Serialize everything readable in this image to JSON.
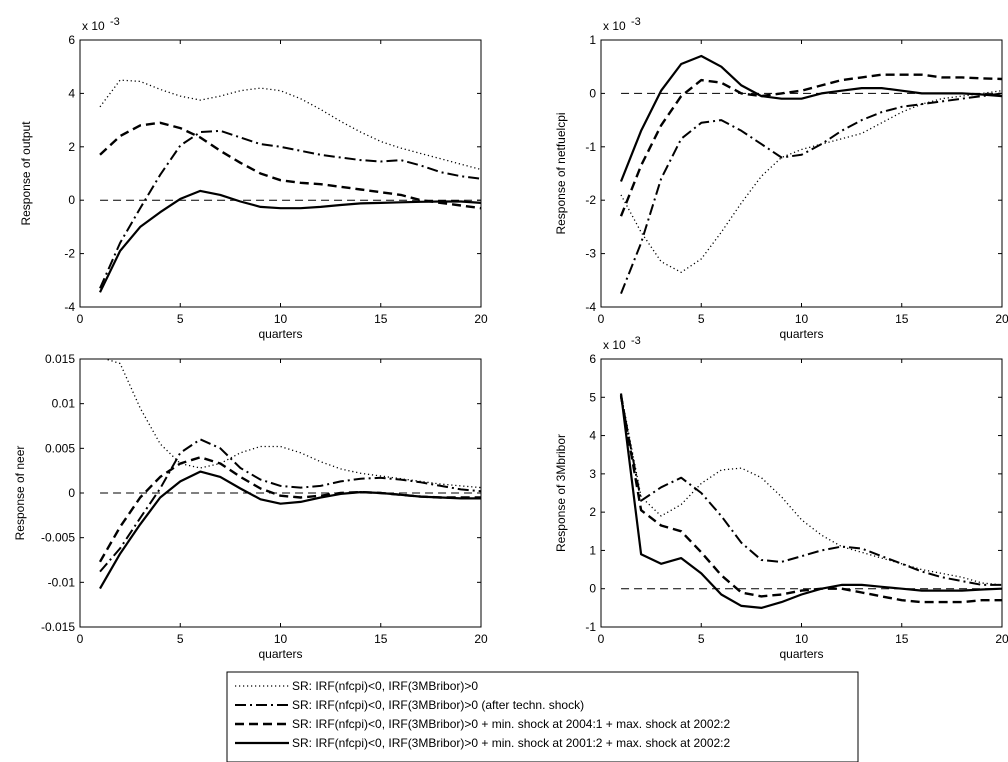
{
  "figure": {
    "xlabel": "quarters"
  },
  "legend": {
    "entries": [
      {
        "series": "sr_base",
        "label": "SR: IRF(nfcpi)<0, IRF(3MBribor)>0"
      },
      {
        "series": "sr_techn",
        "label": "SR: IRF(nfcpi)<0, IRF(3MBribor)>0 (after techn. shock)"
      },
      {
        "series": "sr_2004",
        "label": "SR: IRF(nfcpi)<0, IRF(3MBribor)>0 + min. shock at 2004:1 + max. shock at 2002:2"
      },
      {
        "series": "sr_2001",
        "label": "SR: IRF(nfcpi)<0, IRF(3MBribor)>0 + min. shock at 2001:2 + max. shock at 2002:2"
      }
    ]
  },
  "styles": {
    "sr_base": {
      "dash": "1.2 2.8",
      "width": 1.3
    },
    "sr_techn": {
      "dash": "11 4 2 4",
      "width": 2.0
    },
    "sr_2004": {
      "dash": "9 5",
      "width": 2.4
    },
    "sr_2001": {
      "dash": "",
      "width": 2.2
    },
    "zero": {
      "dash": "8 5",
      "width": 1.0
    }
  },
  "chart_data": [
    {
      "type": "line",
      "id": "output",
      "ylabel": "Response of output",
      "exponent_label": "x 10",
      "exponent_power": "-3",
      "xlim": [
        0,
        20
      ],
      "ylim": [
        -4,
        6
      ],
      "xticks": [
        0,
        5,
        10,
        15,
        20
      ],
      "yticks": [
        -4,
        -2,
        0,
        2,
        4,
        6
      ],
      "ytick_labels": [
        "-4",
        "-2",
        "0",
        "2",
        "4",
        "6"
      ],
      "reference_line": 0,
      "series": [
        {
          "key": "sr_base",
          "x": [
            1,
            2,
            3,
            4,
            5,
            6,
            7,
            8,
            9,
            10,
            11,
            12,
            13,
            14,
            15,
            16,
            17,
            18,
            19,
            20
          ],
          "y": [
            3.5,
            4.5,
            4.45,
            4.15,
            3.9,
            3.75,
            3.9,
            4.1,
            4.2,
            4.1,
            3.8,
            3.4,
            2.95,
            2.55,
            2.2,
            1.95,
            1.75,
            1.55,
            1.35,
            1.15
          ]
        },
        {
          "key": "sr_techn",
          "x": [
            1,
            2,
            3,
            4,
            5,
            6,
            7,
            8,
            9,
            10,
            11,
            12,
            13,
            14,
            15,
            16,
            17,
            18,
            19,
            20
          ],
          "y": [
            -3.3,
            -1.6,
            -0.3,
            0.95,
            2.05,
            2.55,
            2.6,
            2.35,
            2.1,
            2.0,
            1.85,
            1.7,
            1.6,
            1.5,
            1.45,
            1.5,
            1.3,
            1.05,
            0.9,
            0.8
          ]
        },
        {
          "key": "sr_2004",
          "x": [
            1,
            2,
            3,
            4,
            5,
            6,
            7,
            8,
            9,
            10,
            11,
            12,
            13,
            14,
            15,
            16,
            17,
            18,
            19,
            20
          ],
          "y": [
            1.7,
            2.4,
            2.8,
            2.9,
            2.7,
            2.35,
            1.85,
            1.4,
            1.0,
            0.75,
            0.65,
            0.6,
            0.5,
            0.4,
            0.3,
            0.2,
            0.0,
            -0.1,
            -0.2,
            -0.3
          ]
        },
        {
          "key": "sr_2001",
          "x": [
            1,
            2,
            3,
            4,
            5,
            6,
            7,
            8,
            9,
            10,
            11,
            12,
            13,
            14,
            15,
            16,
            17,
            18,
            19,
            20
          ],
          "y": [
            -3.45,
            -1.9,
            -1.0,
            -0.45,
            0.05,
            0.35,
            0.2,
            -0.05,
            -0.25,
            -0.3,
            -0.3,
            -0.25,
            -0.18,
            -0.12,
            -0.1,
            -0.08,
            -0.06,
            -0.05,
            -0.05,
            -0.1
          ]
        }
      ]
    },
    {
      "type": "line",
      "id": "netfuelcpi",
      "ylabel": "Response of netfuelcpi",
      "exponent_label": "x 10",
      "exponent_power": "-3",
      "xlim": [
        0,
        20
      ],
      "ylim": [
        -4,
        1
      ],
      "xticks": [
        0,
        5,
        10,
        15,
        20
      ],
      "yticks": [
        -4,
        -3,
        -2,
        -1,
        0,
        1
      ],
      "ytick_labels": [
        "-4",
        "-3",
        "-2",
        "-1",
        "0",
        "1"
      ],
      "reference_line": 0,
      "series": [
        {
          "key": "sr_base",
          "x": [
            1,
            2,
            3,
            4,
            5,
            6,
            7,
            8,
            9,
            10,
            11,
            12,
            13,
            14,
            15,
            16,
            17,
            18,
            19,
            20
          ],
          "y": [
            -1.9,
            -2.6,
            -3.15,
            -3.35,
            -3.1,
            -2.6,
            -2.05,
            -1.55,
            -1.2,
            -1.05,
            -0.95,
            -0.85,
            -0.75,
            -0.55,
            -0.35,
            -0.2,
            -0.1,
            -0.05,
            0.0,
            0.05
          ]
        },
        {
          "key": "sr_techn",
          "x": [
            1,
            2,
            3,
            4,
            5,
            6,
            7,
            8,
            9,
            10,
            11,
            12,
            13,
            14,
            15,
            16,
            17,
            18,
            19,
            20
          ],
          "y": [
            -3.75,
            -2.8,
            -1.6,
            -0.85,
            -0.55,
            -0.5,
            -0.7,
            -0.95,
            -1.2,
            -1.15,
            -0.95,
            -0.7,
            -0.5,
            -0.35,
            -0.25,
            -0.2,
            -0.15,
            -0.1,
            -0.05,
            0.0
          ]
        },
        {
          "key": "sr_2004",
          "x": [
            1,
            2,
            3,
            4,
            5,
            6,
            7,
            8,
            9,
            10,
            11,
            12,
            13,
            14,
            15,
            16,
            17,
            18,
            19,
            20
          ],
          "y": [
            -2.3,
            -1.35,
            -0.6,
            -0.05,
            0.25,
            0.2,
            0.0,
            -0.05,
            0.0,
            0.05,
            0.15,
            0.25,
            0.3,
            0.35,
            0.35,
            0.35,
            0.3,
            0.3,
            0.28,
            0.27
          ]
        },
        {
          "key": "sr_2001",
          "x": [
            1,
            2,
            3,
            4,
            5,
            6,
            7,
            8,
            9,
            10,
            11,
            12,
            13,
            14,
            15,
            16,
            17,
            18,
            19,
            20
          ],
          "y": [
            -1.65,
            -0.7,
            0.05,
            0.55,
            0.7,
            0.5,
            0.15,
            -0.05,
            -0.1,
            -0.1,
            0.0,
            0.05,
            0.1,
            0.1,
            0.05,
            0.0,
            0.0,
            0.0,
            -0.02,
            -0.05
          ]
        }
      ]
    },
    {
      "type": "line",
      "id": "neer",
      "ylabel": "Response of neer",
      "xlim": [
        0,
        20
      ],
      "ylim": [
        -0.015,
        0.015
      ],
      "xticks": [
        0,
        5,
        10,
        15,
        20
      ],
      "yticks": [
        -0.015,
        -0.01,
        -0.005,
        0,
        0.005,
        0.01,
        0.015
      ],
      "ytick_labels": [
        "-0.015",
        "-0.01",
        "-0.005",
        "0",
        "0.005",
        "0.01",
        "0.015"
      ],
      "reference_line": 0,
      "series": [
        {
          "key": "sr_base",
          "x": [
            1,
            2,
            3,
            4,
            5,
            6,
            7,
            8,
            9,
            10,
            11,
            12,
            13,
            14,
            15,
            16,
            17,
            18,
            19,
            20
          ],
          "y": [
            0.0152,
            0.0145,
            0.0095,
            0.0055,
            0.0033,
            0.0028,
            0.0033,
            0.0045,
            0.0052,
            0.0052,
            0.0045,
            0.0035,
            0.0027,
            0.0022,
            0.0019,
            0.0016,
            0.0013,
            0.001,
            0.0008,
            0.0006
          ]
        },
        {
          "key": "sr_techn",
          "x": [
            1,
            2,
            3,
            4,
            5,
            6,
            7,
            8,
            9,
            10,
            11,
            12,
            13,
            14,
            15,
            16,
            17,
            18,
            19,
            20
          ],
          "y": [
            -0.0088,
            -0.0062,
            -0.0028,
            0.0005,
            0.0045,
            0.006,
            0.005,
            0.0028,
            0.0015,
            0.0008,
            0.0006,
            0.0008,
            0.0013,
            0.0016,
            0.0017,
            0.0015,
            0.0012,
            0.0008,
            0.0004,
            0.0002
          ]
        },
        {
          "key": "sr_2004",
          "x": [
            1,
            2,
            3,
            4,
            5,
            6,
            7,
            8,
            9,
            10,
            11,
            12,
            13,
            14,
            15,
            16,
            17,
            18,
            19,
            20
          ],
          "y": [
            -0.0077,
            -0.0038,
            -0.0005,
            0.0018,
            0.0033,
            0.004,
            0.0033,
            0.0018,
            0.0005,
            -0.0003,
            -0.0005,
            -0.0003,
            0.0,
            0.0001,
            0.0,
            -0.0002,
            -0.0004,
            -0.0005,
            -0.0005,
            -0.0005
          ]
        },
        {
          "key": "sr_2001",
          "x": [
            1,
            2,
            3,
            4,
            5,
            6,
            7,
            8,
            9,
            10,
            11,
            12,
            13,
            14,
            15,
            16,
            17,
            18,
            19,
            20
          ],
          "y": [
            -0.0107,
            -0.0068,
            -0.0035,
            -0.0005,
            0.0013,
            0.0024,
            0.0018,
            0.0005,
            -0.0007,
            -0.0012,
            -0.001,
            -0.0005,
            -0.0001,
            0.0001,
            0.0,
            -0.0002,
            -0.0004,
            -0.0005,
            -0.0006,
            -0.0006
          ]
        }
      ]
    },
    {
      "type": "line",
      "id": "3mbribor",
      "ylabel": "Response of 3Mbribor",
      "exponent_label": "x 10",
      "exponent_power": "-3",
      "xlim": [
        0,
        20
      ],
      "ylim": [
        -1,
        6
      ],
      "xticks": [
        0,
        5,
        10,
        15,
        20
      ],
      "yticks": [
        -1,
        0,
        1,
        2,
        3,
        4,
        5,
        6
      ],
      "ytick_labels": [
        "-1",
        "0",
        "1",
        "2",
        "3",
        "4",
        "5",
        "6"
      ],
      "reference_line": 0,
      "series": [
        {
          "key": "sr_base",
          "x": [
            1,
            2,
            3,
            4,
            5,
            6,
            7,
            8,
            9,
            10,
            11,
            12,
            13,
            14,
            15,
            16,
            17,
            18,
            19,
            20
          ],
          "y": [
            5.1,
            2.4,
            1.9,
            2.2,
            2.75,
            3.1,
            3.15,
            2.9,
            2.4,
            1.8,
            1.4,
            1.1,
            0.95,
            0.8,
            0.65,
            0.5,
            0.4,
            0.3,
            0.15,
            0.1
          ]
        },
        {
          "key": "sr_techn",
          "x": [
            1,
            2,
            3,
            4,
            5,
            6,
            7,
            8,
            9,
            10,
            11,
            12,
            13,
            14,
            15,
            16,
            17,
            18,
            19,
            20
          ],
          "y": [
            5.0,
            2.3,
            2.65,
            2.9,
            2.5,
            1.9,
            1.2,
            0.75,
            0.7,
            0.85,
            1.0,
            1.1,
            1.05,
            0.85,
            0.65,
            0.45,
            0.3,
            0.2,
            0.1,
            0.1
          ]
        },
        {
          "key": "sr_2004",
          "x": [
            1,
            2,
            3,
            4,
            5,
            6,
            7,
            8,
            9,
            10,
            11,
            12,
            13,
            14,
            15,
            16,
            17,
            18,
            19,
            20
          ],
          "y": [
            5.05,
            2.05,
            1.65,
            1.5,
            0.95,
            0.35,
            -0.1,
            -0.2,
            -0.15,
            -0.05,
            0.0,
            0.0,
            -0.1,
            -0.2,
            -0.3,
            -0.35,
            -0.35,
            -0.35,
            -0.3,
            -0.3
          ]
        },
        {
          "key": "sr_2001",
          "x": [
            1,
            2,
            3,
            4,
            5,
            6,
            7,
            8,
            9,
            10,
            11,
            12,
            13,
            14,
            15,
            16,
            17,
            18,
            19,
            20
          ],
          "y": [
            5.1,
            0.9,
            0.65,
            0.8,
            0.4,
            -0.15,
            -0.45,
            -0.5,
            -0.35,
            -0.15,
            0.0,
            0.1,
            0.1,
            0.05,
            0.0,
            -0.05,
            -0.05,
            -0.05,
            -0.02,
            0.0
          ]
        }
      ]
    }
  ]
}
